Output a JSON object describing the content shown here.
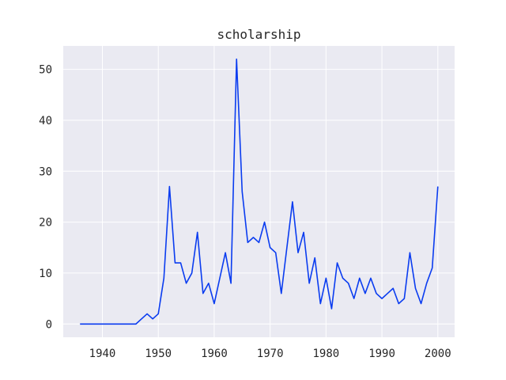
{
  "chart_data": {
    "type": "line",
    "title": "scholarship",
    "xlabel": "",
    "ylabel": "",
    "xlim": [
      1933,
      2003
    ],
    "ylim": [
      -2.6,
      54.6
    ],
    "xticks": [
      1940,
      1950,
      1960,
      1970,
      1980,
      1990,
      2000
    ],
    "yticks": [
      0,
      10,
      20,
      30,
      40,
      50
    ],
    "grid": true,
    "background": "#eaeaf2",
    "line_color": "#0a3cf0",
    "series": [
      {
        "x": [
          1936,
          1937,
          1938,
          1939,
          1940,
          1941,
          1942,
          1943,
          1944,
          1945,
          1946,
          1947,
          1948,
          1949,
          1950,
          1951,
          1952,
          1953,
          1954,
          1955,
          1956,
          1957,
          1958,
          1959,
          1960,
          1961,
          1962,
          1963,
          1964,
          1965,
          1966,
          1967,
          1968,
          1969,
          1970,
          1971,
          1972,
          1973,
          1974,
          1975,
          1976,
          1977,
          1978,
          1979,
          1980,
          1981,
          1982,
          1983,
          1984,
          1985,
          1986,
          1987,
          1988,
          1989,
          1990,
          1991,
          1992,
          1993,
          1994,
          1995,
          1996,
          1997,
          1998,
          1999,
          2000
        ],
        "values": [
          0,
          0,
          0,
          0,
          0,
          0,
          0,
          0,
          0,
          0,
          0,
          1,
          2,
          1,
          2,
          9,
          27,
          12,
          12,
          8,
          10,
          18,
          6,
          8,
          4,
          9,
          14,
          8,
          52,
          26,
          16,
          17,
          16,
          20,
          15,
          14,
          6,
          15,
          24,
          14,
          18,
          8,
          13,
          4,
          9,
          3,
          12,
          9,
          8,
          5,
          9,
          6,
          9,
          6,
          5,
          6,
          7,
          4,
          5,
          14,
          7,
          4,
          8,
          11,
          27
        ]
      }
    ]
  }
}
